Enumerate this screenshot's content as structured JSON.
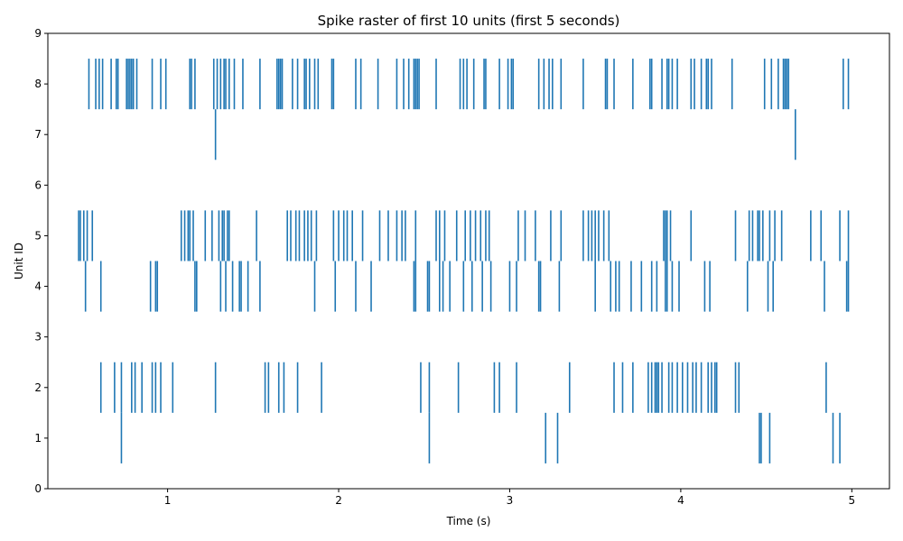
{
  "chart_data": {
    "type": "raster",
    "title": "Spike raster of first 10 units (first 5 seconds)",
    "xlabel": "Time (s)",
    "ylabel": "Unit ID",
    "xlim": [
      0.3,
      5.22
    ],
    "ylim": [
      0,
      9
    ],
    "xticks": [
      1,
      2,
      3,
      4,
      5
    ],
    "yticks": [
      0,
      1,
      2,
      3,
      4,
      5,
      6,
      7,
      8,
      9
    ],
    "grid": false,
    "series_color": "#1f77b4",
    "units": [
      {
        "id": 1,
        "spikes": [
          0.73,
          2.53,
          3.21,
          3.28,
          4.46,
          4.47,
          4.52,
          4.89,
          4.93
        ]
      },
      {
        "id": 2,
        "spikes": [
          0.61,
          0.69,
          0.73,
          0.79,
          0.81,
          0.85,
          0.91,
          0.93,
          0.96,
          1.03,
          1.28,
          1.57,
          1.59,
          1.65,
          1.68,
          1.76,
          1.9,
          2.48,
          2.53,
          2.7,
          2.91,
          2.94,
          3.04,
          3.35,
          3.61,
          3.66,
          3.72,
          3.81,
          3.83,
          3.85,
          3.86,
          3.87,
          3.89,
          3.93,
          3.95,
          3.98,
          4.01,
          4.04,
          4.07,
          4.09,
          4.12,
          4.16,
          4.18,
          4.2,
          4.21,
          4.32,
          4.34,
          4.85
        ]
      },
      {
        "id": 4,
        "spikes": [
          0.52,
          0.61,
          0.9,
          0.93,
          0.94,
          1.16,
          1.17,
          1.31,
          1.34,
          1.38,
          1.42,
          1.43,
          1.47,
          1.54,
          1.86,
          1.98,
          2.1,
          2.19,
          2.44,
          2.45,
          2.52,
          2.53,
          2.59,
          2.61,
          2.65,
          2.73,
          2.78,
          2.84,
          2.89,
          3.0,
          3.04,
          3.17,
          3.18,
          3.29,
          3.5,
          3.59,
          3.62,
          3.64,
          3.71,
          3.77,
          3.83,
          3.86,
          3.91,
          3.92,
          3.95,
          3.99,
          4.14,
          4.17,
          4.39,
          4.51,
          4.54,
          4.84,
          4.97,
          4.98
        ]
      },
      {
        "id": 5,
        "spikes": [
          0.48,
          0.49,
          0.51,
          0.53,
          0.56,
          1.08,
          1.1,
          1.12,
          1.13,
          1.15,
          1.22,
          1.26,
          1.3,
          1.32,
          1.33,
          1.35,
          1.36,
          1.52,
          1.7,
          1.72,
          1.75,
          1.77,
          1.8,
          1.82,
          1.84,
          1.87,
          1.97,
          2.0,
          2.03,
          2.05,
          2.08,
          2.14,
          2.24,
          2.29,
          2.34,
          2.37,
          2.39,
          2.45,
          2.57,
          2.59,
          2.62,
          2.69,
          2.74,
          2.77,
          2.8,
          2.83,
          2.86,
          2.88,
          3.05,
          3.09,
          3.15,
          3.24,
          3.3,
          3.43,
          3.46,
          3.48,
          3.5,
          3.52,
          3.55,
          3.58,
          3.9,
          3.91,
          3.92,
          3.94,
          4.06,
          4.32,
          4.4,
          4.42,
          4.45,
          4.46,
          4.48,
          4.52,
          4.55,
          4.59,
          4.76,
          4.82,
          4.93,
          4.98
        ]
      },
      {
        "id": 7,
        "spikes": [
          1.28,
          4.67
        ]
      },
      {
        "id": 8,
        "spikes": [
          0.54,
          0.58,
          0.6,
          0.62,
          0.67,
          0.7,
          0.71,
          0.76,
          0.77,
          0.78,
          0.79,
          0.8,
          0.82,
          0.91,
          0.96,
          0.99,
          1.13,
          1.14,
          1.16,
          1.27,
          1.29,
          1.31,
          1.33,
          1.34,
          1.36,
          1.39,
          1.44,
          1.54,
          1.64,
          1.65,
          1.66,
          1.67,
          1.73,
          1.76,
          1.8,
          1.81,
          1.83,
          1.86,
          1.88,
          1.96,
          1.97,
          2.1,
          2.13,
          2.23,
          2.34,
          2.38,
          2.41,
          2.44,
          2.45,
          2.46,
          2.47,
          2.57,
          2.71,
          2.73,
          2.75,
          2.79,
          2.85,
          2.86,
          2.94,
          2.99,
          3.01,
          3.02,
          3.17,
          3.2,
          3.23,
          3.25,
          3.3,
          3.43,
          3.56,
          3.57,
          3.61,
          3.72,
          3.82,
          3.83,
          3.89,
          3.92,
          3.93,
          3.95,
          3.98,
          4.06,
          4.08,
          4.12,
          4.15,
          4.16,
          4.18,
          4.3,
          4.49,
          4.53,
          4.57,
          4.6,
          4.61,
          4.62,
          4.63,
          4.95,
          4.98
        ]
      }
    ]
  }
}
